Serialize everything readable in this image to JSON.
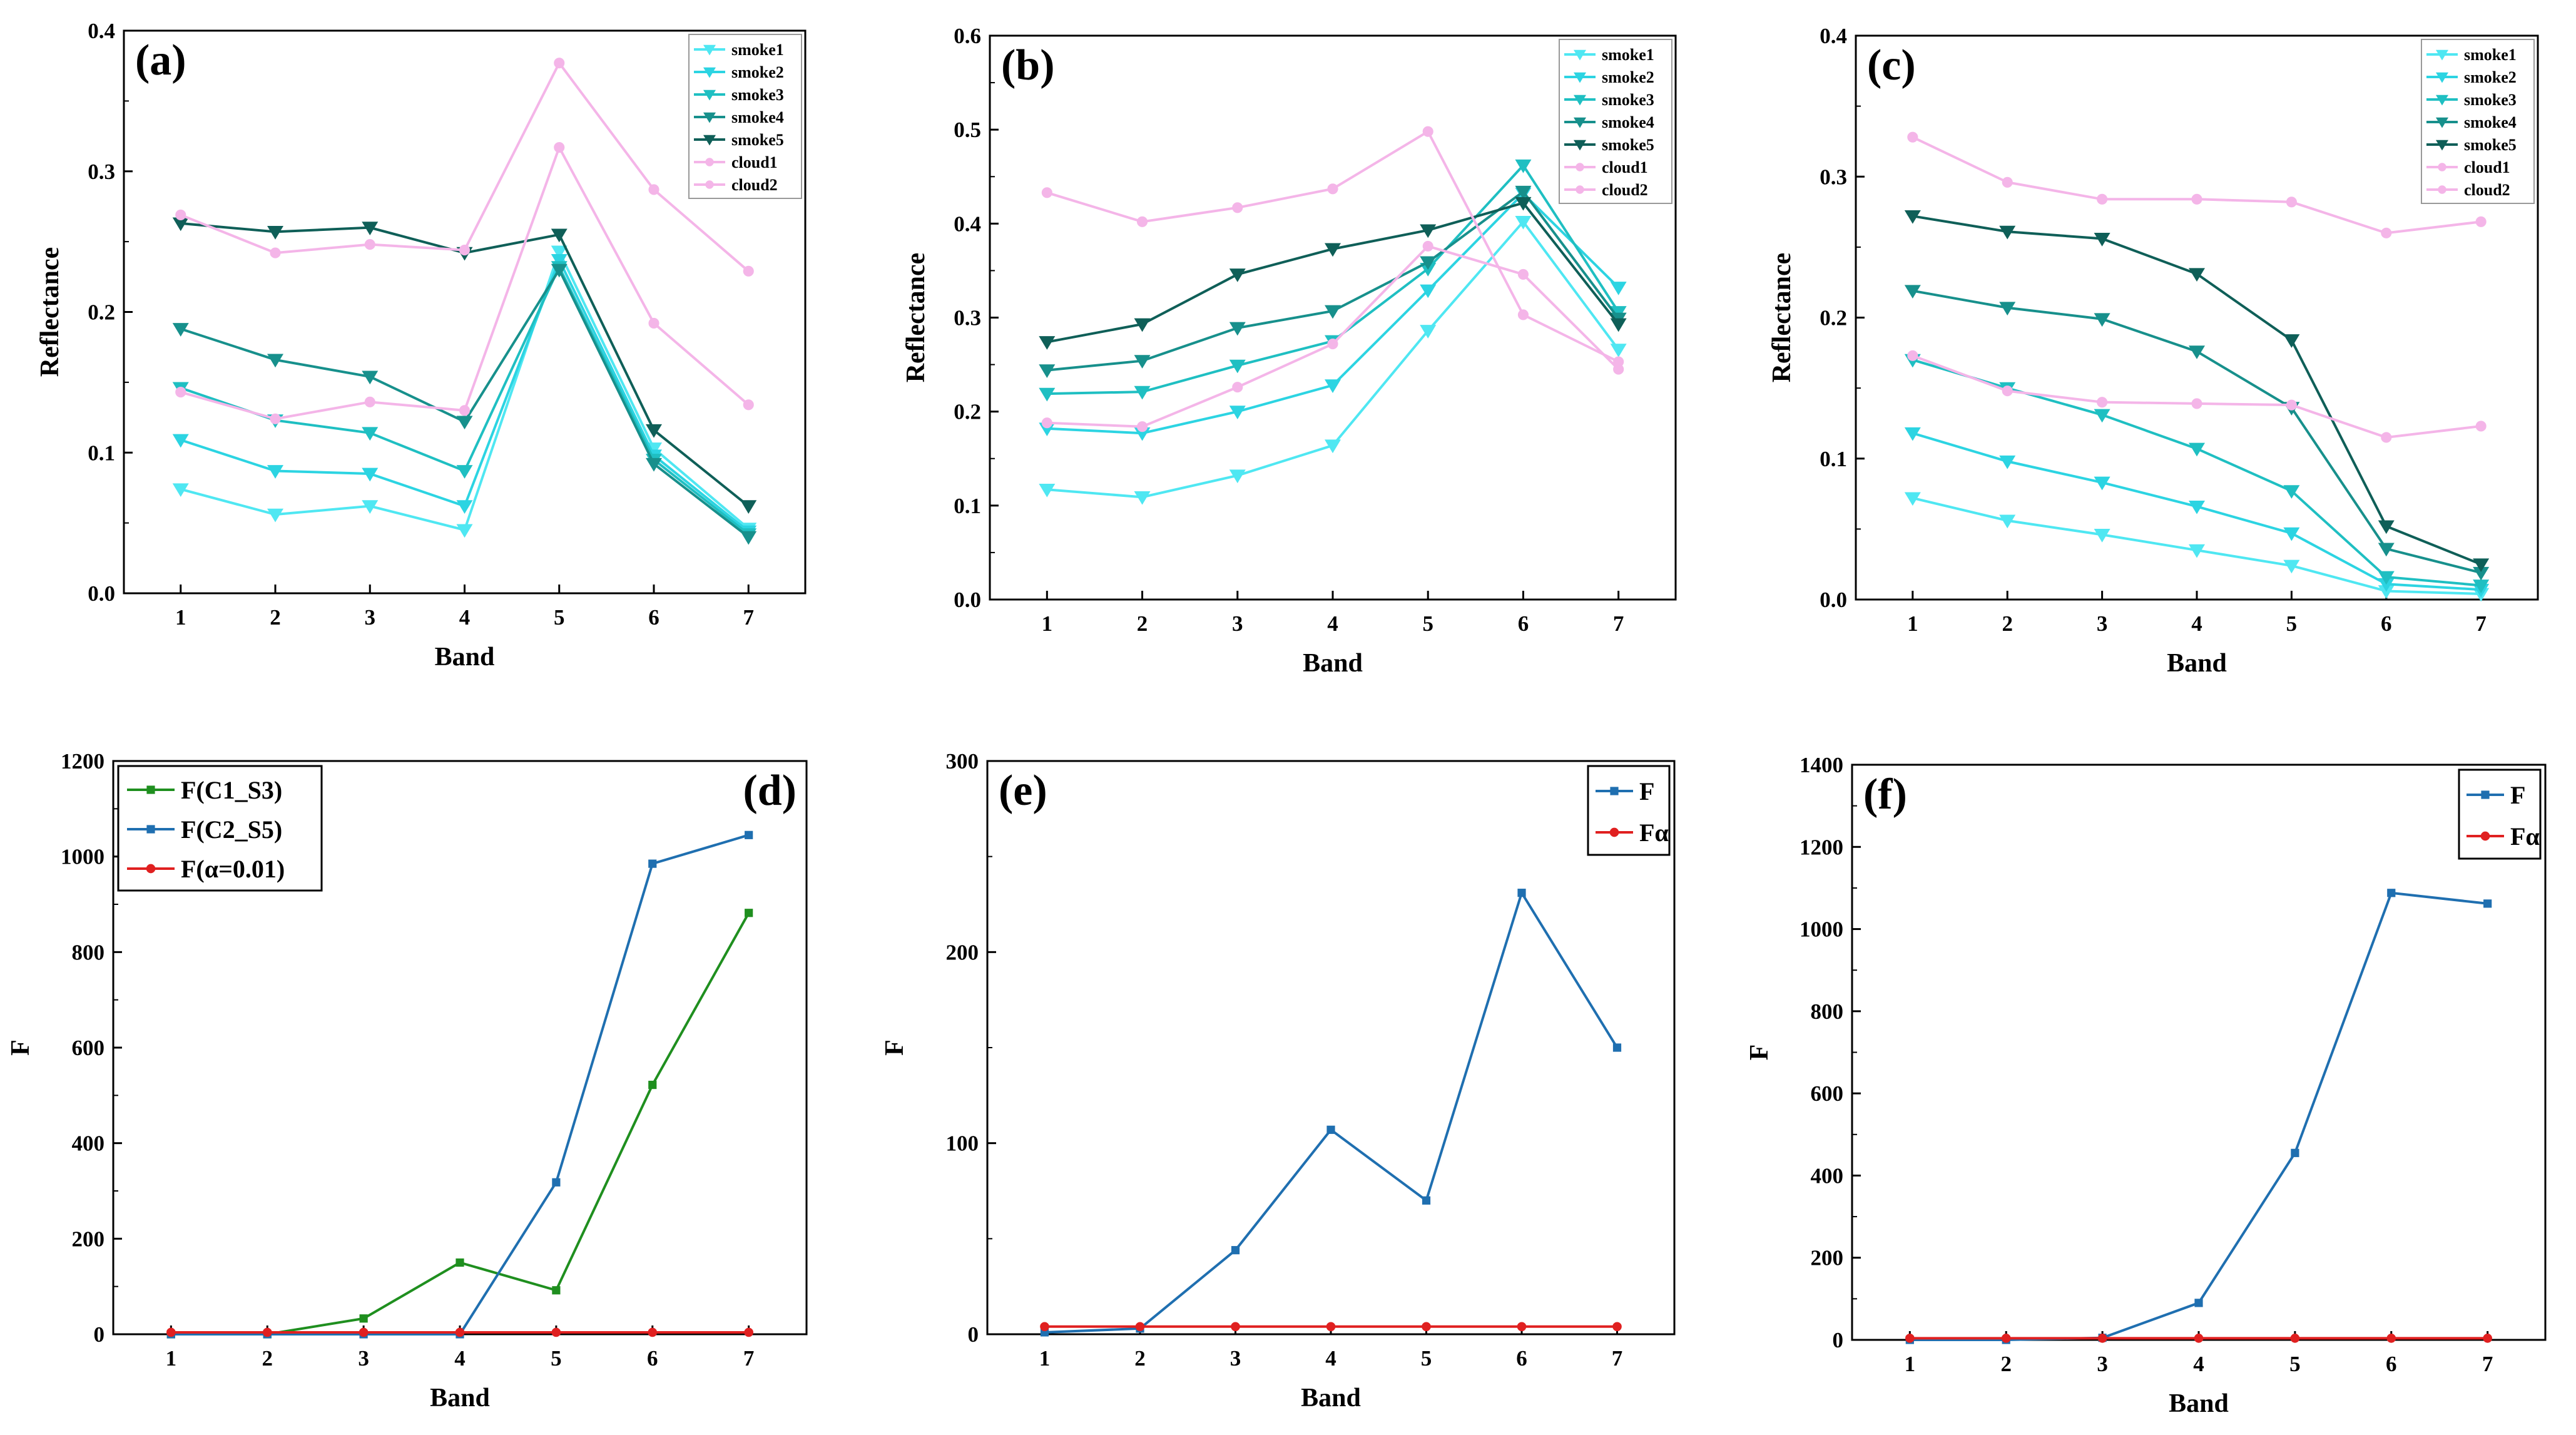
{
  "chart_data": [
    {
      "panel": "(a)",
      "type": "line",
      "xlabel": "Band",
      "ylabel": "Reflectance",
      "x": [
        1,
        2,
        3,
        4,
        5,
        6,
        7
      ],
      "xlim": [
        0.4,
        7.6
      ],
      "ylim": [
        0,
        0.4
      ],
      "yticks": [
        0.0,
        0.1,
        0.2,
        0.3,
        0.4
      ],
      "ytick_labels": [
        "0.0",
        "0.1",
        "0.2",
        "0.3",
        "0.4"
      ],
      "grid": false,
      "legend_position": "top-right",
      "series": [
        {
          "name": "smoke1",
          "marker": "triangle-down",
          "color": "#4fe7f2",
          "values": [
            0.074,
            0.056,
            0.062,
            0.045,
            0.243,
            0.103,
            0.046
          ]
        },
        {
          "name": "smoke2",
          "marker": "triangle-down",
          "color": "#2cd4e2",
          "values": [
            0.109,
            0.087,
            0.085,
            0.062,
            0.237,
            0.098,
            0.044
          ]
        },
        {
          "name": "smoke3",
          "marker": "triangle-down",
          "color": "#1fbfc2",
          "values": [
            0.146,
            0.123,
            0.114,
            0.087,
            0.232,
            0.095,
            0.042
          ]
        },
        {
          "name": "smoke4",
          "marker": "triangle-down",
          "color": "#17908c",
          "values": [
            0.188,
            0.166,
            0.154,
            0.122,
            0.23,
            0.092,
            0.04
          ]
        },
        {
          "name": "smoke5",
          "marker": "triangle-down",
          "color": "#0f5f58",
          "values": [
            0.263,
            0.257,
            0.26,
            0.242,
            0.255,
            0.116,
            0.062
          ]
        },
        {
          "name": "cloud1",
          "marker": "circle",
          "color": "#f4b5e8",
          "values": [
            0.143,
            0.124,
            0.136,
            0.13,
            0.317,
            0.192,
            0.134
          ]
        },
        {
          "name": "cloud2",
          "marker": "circle",
          "color": "#f4b5e8",
          "values": [
            0.269,
            0.242,
            0.248,
            0.244,
            0.377,
            0.287,
            0.229
          ]
        }
      ]
    },
    {
      "panel": "(b)",
      "type": "line",
      "xlabel": "Band",
      "ylabel": "Reflectance",
      "x": [
        1,
        2,
        3,
        4,
        5,
        6,
        7
      ],
      "xlim": [
        0.4,
        7.6
      ],
      "ylim": [
        0,
        0.6
      ],
      "yticks": [
        0.0,
        0.1,
        0.2,
        0.3,
        0.4,
        0.5,
        0.6
      ],
      "ytick_labels": [
        "0.0",
        "0.1",
        "0.2",
        "0.3",
        "0.4",
        "0.5",
        "0.6"
      ],
      "grid": false,
      "legend_position": "top-right",
      "series": [
        {
          "name": "smoke1",
          "marker": "triangle-down",
          "color": "#4fe7f2",
          "values": [
            0.117,
            0.109,
            0.132,
            0.164,
            0.286,
            0.402,
            0.266
          ]
        },
        {
          "name": "smoke2",
          "marker": "triangle-down",
          "color": "#2cd4e2",
          "values": [
            0.182,
            0.177,
            0.2,
            0.228,
            0.329,
            0.432,
            0.332
          ]
        },
        {
          "name": "smoke3",
          "marker": "triangle-down",
          "color": "#1fbfc2",
          "values": [
            0.219,
            0.221,
            0.249,
            0.275,
            0.352,
            0.462,
            0.306
          ]
        },
        {
          "name": "smoke4",
          "marker": "triangle-down",
          "color": "#17908c",
          "values": [
            0.244,
            0.254,
            0.289,
            0.307,
            0.359,
            0.434,
            0.299
          ]
        },
        {
          "name": "smoke5",
          "marker": "triangle-down",
          "color": "#0f5f58",
          "values": [
            0.274,
            0.293,
            0.346,
            0.373,
            0.393,
            0.422,
            0.293
          ]
        },
        {
          "name": "cloud1",
          "marker": "circle",
          "color": "#f4b5e8",
          "values": [
            0.188,
            0.184,
            0.226,
            0.272,
            0.376,
            0.346,
            0.245
          ]
        },
        {
          "name": "cloud2",
          "marker": "circle",
          "color": "#f4b5e8",
          "values": [
            0.433,
            0.402,
            0.417,
            0.437,
            0.498,
            0.303,
            0.253
          ]
        }
      ]
    },
    {
      "panel": "(c)",
      "type": "line",
      "xlabel": "Band",
      "ylabel": "Reflectance",
      "x": [
        1,
        2,
        3,
        4,
        5,
        6,
        7
      ],
      "xlim": [
        0.4,
        7.6
      ],
      "ylim": [
        0,
        0.4
      ],
      "yticks": [
        0.0,
        0.1,
        0.2,
        0.3,
        0.4
      ],
      "ytick_labels": [
        "0.0",
        "0.1",
        "0.2",
        "0.3",
        "0.4"
      ],
      "grid": false,
      "legend_position": "top-right",
      "series": [
        {
          "name": "smoke1",
          "marker": "triangle-down",
          "color": "#4fe7f2",
          "values": [
            0.072,
            0.056,
            0.046,
            0.035,
            0.024,
            0.006,
            0.004
          ]
        },
        {
          "name": "smoke2",
          "marker": "triangle-down",
          "color": "#2cd4e2",
          "values": [
            0.118,
            0.098,
            0.083,
            0.066,
            0.047,
            0.011,
            0.007
          ]
        },
        {
          "name": "smoke3",
          "marker": "triangle-down",
          "color": "#1fbfc2",
          "values": [
            0.17,
            0.15,
            0.131,
            0.107,
            0.077,
            0.016,
            0.01
          ]
        },
        {
          "name": "smoke4",
          "marker": "triangle-down",
          "color": "#17908c",
          "values": [
            0.219,
            0.207,
            0.199,
            0.176,
            0.136,
            0.036,
            0.019
          ]
        },
        {
          "name": "smoke5",
          "marker": "triangle-down",
          "color": "#0f5f58",
          "values": [
            0.272,
            0.261,
            0.256,
            0.231,
            0.184,
            0.052,
            0.025
          ]
        },
        {
          "name": "cloud1",
          "marker": "circle",
          "color": "#f4b5e8",
          "values": [
            0.173,
            0.148,
            0.14,
            0.139,
            0.138,
            0.115,
            0.123
          ]
        },
        {
          "name": "cloud2",
          "marker": "circle",
          "color": "#f4b5e8",
          "values": [
            0.328,
            0.296,
            0.284,
            0.284,
            0.282,
            0.26,
            0.268
          ]
        }
      ]
    },
    {
      "panel": "(d)",
      "type": "line",
      "xlabel": "Band",
      "ylabel": "F",
      "x": [
        1,
        2,
        3,
        4,
        5,
        6,
        7
      ],
      "xlim": [
        0.4,
        7.6
      ],
      "ylim": [
        0,
        1200
      ],
      "yticks": [
        0,
        200,
        400,
        600,
        800,
        1000,
        1200
      ],
      "ytick_labels": [
        "0",
        "200",
        "400",
        "600",
        "800",
        "1000",
        "1200"
      ],
      "grid": false,
      "legend_position": "top-left",
      "series": [
        {
          "name": "F(C1_S3)",
          "marker": "square",
          "color": "#1f8f1f",
          "values": [
            0,
            0,
            33,
            150,
            92,
            522,
            882
          ]
        },
        {
          "name": "F(C2_S5)",
          "marker": "square",
          "color": "#1f6fb0",
          "values": [
            0,
            0,
            0,
            0,
            318,
            985,
            1045
          ]
        },
        {
          "name": "F(α=0.01)",
          "marker": "circle",
          "color": "#e02020",
          "values": [
            4,
            4,
            4,
            4,
            4,
            4,
            4
          ]
        }
      ]
    },
    {
      "panel": "(e)",
      "type": "line",
      "xlabel": "Band",
      "ylabel": "F",
      "x": [
        1,
        2,
        3,
        4,
        5,
        6,
        7
      ],
      "xlim": [
        0.4,
        7.6
      ],
      "ylim": [
        0,
        300
      ],
      "yticks": [
        0,
        100,
        200,
        300
      ],
      "ytick_labels": [
        "0",
        "100",
        "200",
        "300"
      ],
      "grid": false,
      "legend_position": "top-right",
      "series": [
        {
          "name": "F",
          "marker": "square",
          "color": "#1f6fb0",
          "values": [
            1,
            3,
            44,
            107,
            70,
            231,
            150
          ]
        },
        {
          "name": "Fα",
          "marker": "circle",
          "color": "#e02020",
          "values": [
            4,
            4,
            4,
            4,
            4,
            4,
            4
          ]
        }
      ]
    },
    {
      "panel": "(f)",
      "type": "line",
      "xlabel": "Band",
      "ylabel": "F",
      "x": [
        1,
        2,
        3,
        4,
        5,
        6,
        7
      ],
      "xlim": [
        0.4,
        7.6
      ],
      "ylim": [
        0,
        1400
      ],
      "yticks": [
        0,
        200,
        400,
        600,
        800,
        1000,
        1200,
        1400
      ],
      "ytick_labels": [
        "0",
        "200",
        "400",
        "600",
        "800",
        "1000",
        "1200",
        "1400"
      ],
      "grid": false,
      "legend_position": "top-right",
      "series": [
        {
          "name": "F",
          "marker": "square",
          "color": "#1f6fb0",
          "values": [
            0,
            0,
            5,
            90,
            455,
            1088,
            1062
          ]
        },
        {
          "name": "Fα",
          "marker": "circle",
          "color": "#e02020",
          "values": [
            4,
            4,
            4,
            4,
            4,
            4,
            4
          ]
        }
      ]
    }
  ]
}
